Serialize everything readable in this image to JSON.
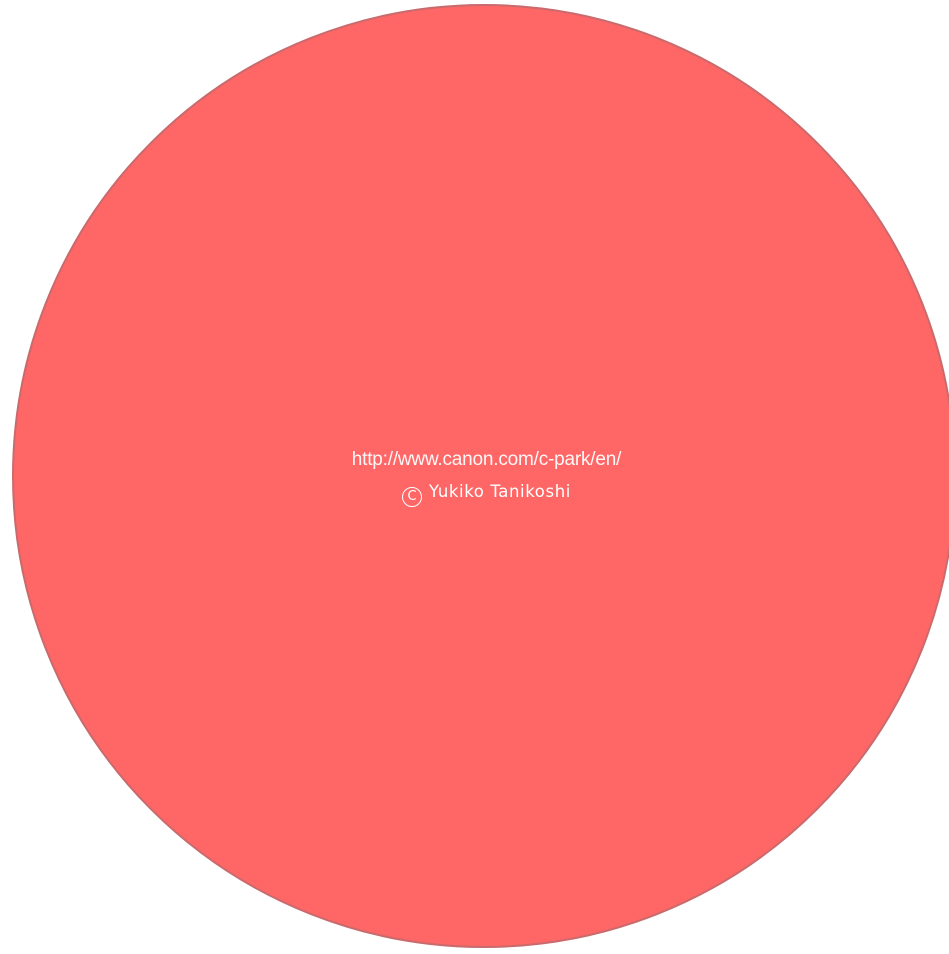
{
  "artwork": {
    "disc_color": "#ff6666",
    "disc_outline_color": "#c96a6d",
    "background_color": "#ffffff"
  },
  "credit": {
    "url": "http://www.canon.com/c-park/en/",
    "copyright_symbol": "C",
    "author": "Yukiko Tanikoshi"
  }
}
